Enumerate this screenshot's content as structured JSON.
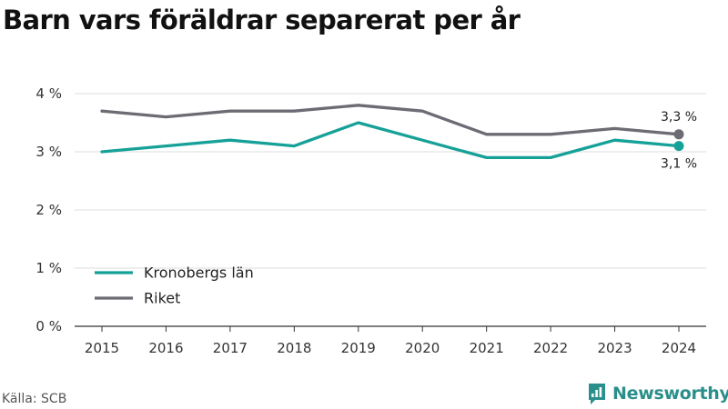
{
  "chart_data": {
    "type": "line",
    "title": "Barn vars föräldrar separerat per år",
    "xlabel": "",
    "ylabel": "",
    "x": [
      "2015",
      "2016",
      "2017",
      "2018",
      "2019",
      "2020",
      "2021",
      "2022",
      "2023",
      "2024"
    ],
    "y_ticks": [
      "0 %",
      "1 %",
      "2 %",
      "3 %",
      "4 %"
    ],
    "ylim": [
      0,
      4
    ],
    "grid": true,
    "legend_position": "bottom-left",
    "series": [
      {
        "name": "Kronobergs län",
        "color": "#16a198",
        "values": [
          3.0,
          3.1,
          3.2,
          3.1,
          3.5,
          3.2,
          2.9,
          2.9,
          3.2,
          3.1
        ],
        "end_label": "3,1 %"
      },
      {
        "name": "Riket",
        "color": "#6d6b73",
        "values": [
          3.7,
          3.6,
          3.7,
          3.7,
          3.8,
          3.7,
          3.3,
          3.3,
          3.4,
          3.3
        ],
        "end_label": "3,3 %"
      }
    ]
  },
  "source": "Källa: SCB",
  "brand": {
    "name": "Newsworthy",
    "icon": "newsworthy-logo-icon",
    "color": "#2a8f8a"
  }
}
